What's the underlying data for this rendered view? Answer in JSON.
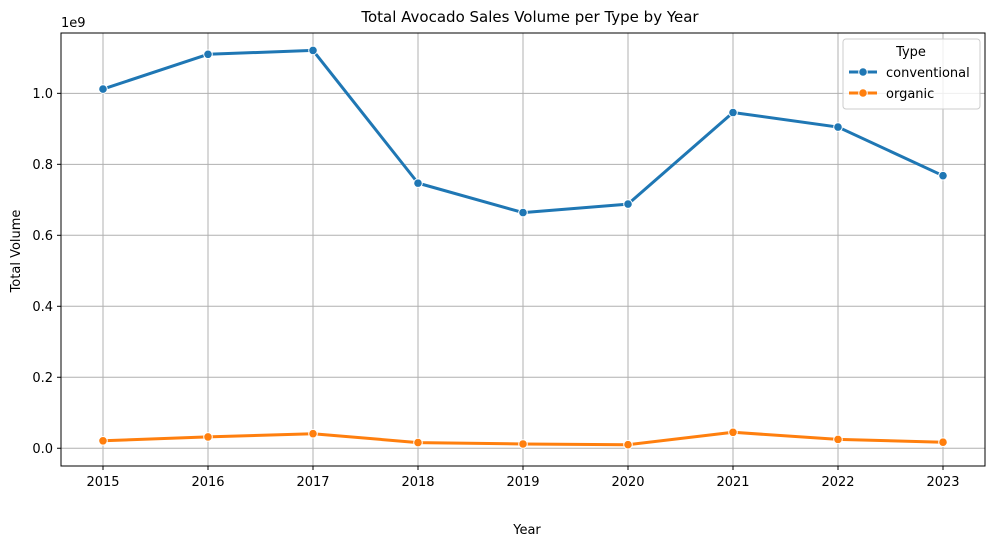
{
  "chart_data": {
    "type": "line",
    "title": "Total Avocado Sales Volume per Type by Year",
    "xlabel": "Year",
    "ylabel": "Total Volume",
    "y_offset_label": "1e9",
    "x": [
      2015,
      2016,
      2017,
      2018,
      2019,
      2020,
      2021,
      2022,
      2023
    ],
    "xlim": [
      2014.6,
      2023.4
    ],
    "ylim": [
      -50000000.0,
      1170000000.0
    ],
    "y_ticks": [
      0.0,
      200000000.0,
      400000000.0,
      600000000.0,
      800000000.0,
      1000000000.0
    ],
    "y_tick_labels": [
      "0.0",
      "0.2",
      "0.4",
      "0.6",
      "0.8",
      "1.0"
    ],
    "grid": true,
    "legend": {
      "title": "Type",
      "placement": "top-right"
    },
    "series": [
      {
        "name": "conventional",
        "color": "#1f77b4",
        "values": [
          1012000000,
          1110000000,
          1121000000,
          747000000,
          664000000,
          688000000,
          946000000,
          905000000,
          768000000
        ]
      },
      {
        "name": "organic",
        "color": "#ff7f0e",
        "values": [
          21000000,
          32000000,
          41000000,
          16000000,
          12000000,
          10000000,
          45000000,
          25000000,
          17000000
        ]
      }
    ]
  }
}
